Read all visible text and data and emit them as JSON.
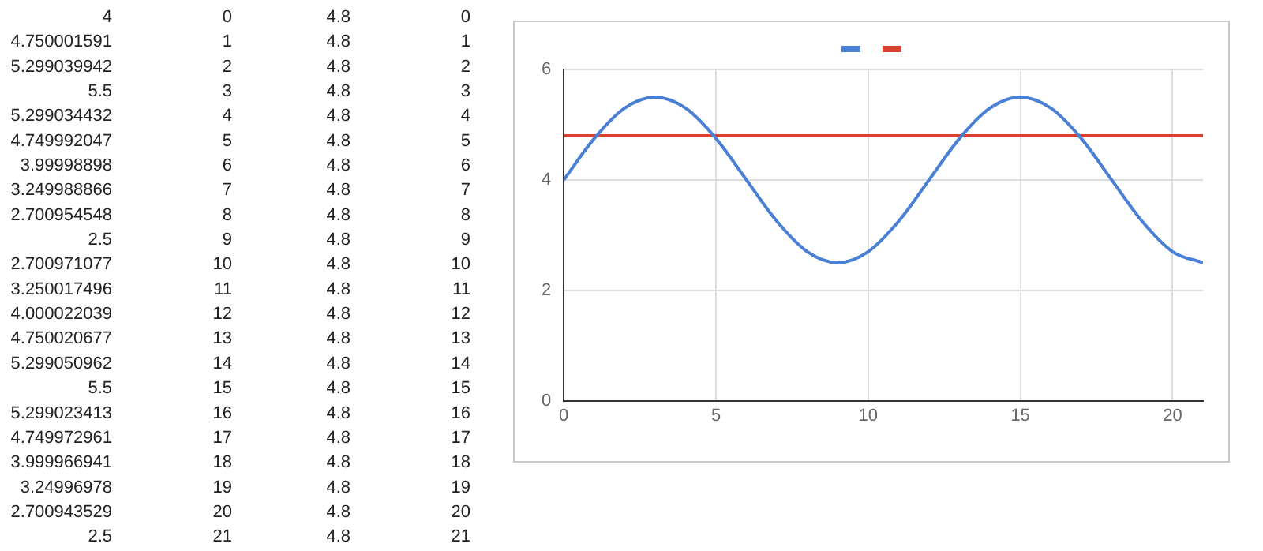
{
  "chart_data": {
    "type": "line",
    "x": [
      0,
      1,
      2,
      3,
      4,
      5,
      6,
      7,
      8,
      9,
      10,
      11,
      12,
      13,
      14,
      15,
      16,
      17,
      18,
      19,
      20,
      21
    ],
    "series": [
      {
        "color": "#4a7fd6",
        "values": [
          4,
          4.75,
          5.3,
          5.5,
          5.3,
          4.75,
          4,
          3.25,
          2.7,
          2.5,
          2.7,
          3.25,
          4,
          4.75,
          5.3,
          5.5,
          5.3,
          4.75,
          4,
          3.25,
          2.7,
          2.5
        ]
      },
      {
        "color": "#d8402f",
        "values": [
          4.8,
          4.8,
          4.8,
          4.8,
          4.8,
          4.8,
          4.8,
          4.8,
          4.8,
          4.8,
          4.8,
          4.8,
          4.8,
          4.8,
          4.8,
          4.8,
          4.8,
          4.8,
          4.8,
          4.8,
          4.8,
          4.8
        ]
      }
    ],
    "xlim": [
      0,
      21
    ],
    "xticks": [
      0,
      5,
      10,
      15,
      20
    ],
    "ylim": [
      0,
      6
    ],
    "yticks": [
      0,
      2,
      4,
      6
    ],
    "grid": true,
    "marker": "none",
    "line_style": "solid",
    "annotations": [
      "4",
      "0",
      "4.8",
      "0",
      "4.750001591",
      "1",
      "4.8",
      "1",
      "5.299039942",
      "2",
      "4.8",
      "2",
      "5.5",
      "3",
      "4.8",
      "3",
      "5.299034432",
      "4",
      "4.8",
      "4",
      "4.749992047",
      "5",
      "4.8",
      "5",
      "3.99998898",
      "6",
      "4.8",
      "6",
      "3.249988866",
      "7",
      "4.8",
      "7",
      "2.700954548",
      "8",
      "4.8",
      "8",
      "2.5",
      "9",
      "4.8",
      "9",
      "2.700971077",
      "10",
      "4.8",
      "10",
      "3.250017496",
      "11",
      "4.8",
      "11",
      "4.000022039",
      "12",
      "4.8",
      "12",
      "4.750020677",
      "13",
      "4.8",
      "13",
      "5.299050962",
      "14",
      "4.8",
      "14",
      "5.5",
      "15",
      "4.8",
      "15",
      "5.299023413",
      "16",
      "4.8",
      "16",
      "4.749972961",
      "17",
      "4.8",
      "17",
      "3.999966941",
      "18",
      "4.8",
      "18",
      "3.24996978",
      "19",
      "4.8",
      "19",
      "2.700943529",
      "20",
      "4.8",
      "20",
      "2.5",
      "21",
      "4.8",
      "21"
    ]
  }
}
